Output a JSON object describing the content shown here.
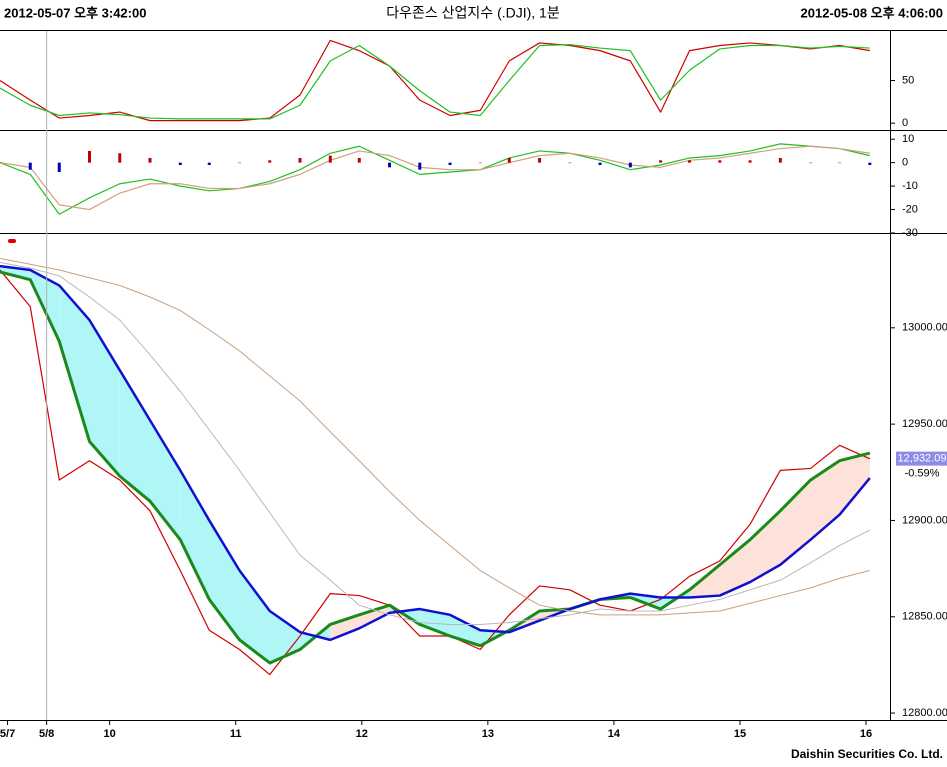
{
  "header": {
    "start": "2012-05-07 오후 3:42:00",
    "title": "다우존스 산업지수 (.DJI), 1분",
    "end": "2012-05-08 오후 4:06:00"
  },
  "footer": "Daishin Securities Co. Ltd.",
  "chart_data": [
    {
      "type": "line",
      "x": [
        9.13,
        9.37,
        9.6,
        9.84,
        10.08,
        10.32,
        10.56,
        10.79,
        11.03,
        11.27,
        11.51,
        11.75,
        11.98,
        12.22,
        12.46,
        12.7,
        12.94,
        13.17,
        13.41,
        13.65,
        13.89,
        14.13,
        14.37,
        14.6,
        14.84,
        15.08,
        15.32,
        15.56,
        15.79,
        16.03
      ],
      "xlim": [
        9.13,
        16.19
      ],
      "ylim": [
        -8,
        108
      ],
      "yticks": [
        0,
        50
      ],
      "series": [
        {
          "color": "#d00000",
          "values": [
            50,
            27,
            6,
            9,
            13,
            3,
            3,
            3,
            3,
            6,
            33,
            97,
            85,
            67,
            27,
            9,
            15,
            73,
            94,
            91,
            85,
            73,
            13,
            85,
            91,
            94,
            91,
            87,
            91,
            85
          ]
        },
        {
          "color": "#20c020",
          "values": [
            41,
            21,
            9,
            12,
            10,
            6,
            5,
            5,
            5,
            5,
            21,
            73,
            91,
            67,
            38,
            13,
            9,
            50,
            91,
            92,
            88,
            85,
            27,
            62,
            87,
            91,
            91,
            88,
            90,
            88
          ]
        }
      ]
    },
    {
      "type": "line",
      "x": [
        9.13,
        9.37,
        9.6,
        9.84,
        10.08,
        10.32,
        10.56,
        10.79,
        11.03,
        11.27,
        11.51,
        11.75,
        11.98,
        12.22,
        12.46,
        12.7,
        12.94,
        13.17,
        13.41,
        13.65,
        13.89,
        14.13,
        14.37,
        14.6,
        14.84,
        15.08,
        15.32,
        15.56,
        15.79,
        16.03
      ],
      "xlim": [
        9.13,
        16.19
      ],
      "ylim": [
        -30,
        13.5
      ],
      "yticks": [
        10,
        0,
        -10,
        -20,
        -30
      ],
      "series": [
        {
          "color": "#20c020",
          "values": [
            0,
            -5,
            -22,
            -15,
            -9,
            -7,
            -10,
            -12,
            -11,
            -8,
            -3,
            4,
            7,
            1,
            -5,
            -4,
            -3,
            2,
            5,
            4,
            1,
            -3,
            -1,
            2,
            3,
            5,
            8,
            7,
            6,
            3
          ]
        },
        {
          "color": "#d0a080",
          "values": [
            0,
            -2,
            -18,
            -20,
            -13,
            -9,
            -9,
            -11,
            -11,
            -9,
            -5,
            1,
            5,
            3,
            -2,
            -3,
            -3,
            0,
            3,
            4,
            2,
            -1,
            -2,
            1,
            2,
            4,
            6,
            7,
            6,
            4
          ]
        },
        {
          "style": "bar",
          "up_color": "#c00000",
          "down_color": "#0000c0",
          "values": [
            0,
            -3,
            -4,
            5,
            4,
            2,
            -1,
            -1,
            0,
            1,
            2,
            3,
            2,
            -2,
            -3,
            -1,
            0,
            2,
            2,
            0,
            -1,
            -2,
            1,
            1,
            1,
            1,
            2,
            0,
            0,
            -1
          ]
        }
      ]
    },
    {
      "type": "line",
      "x": [
        9.13,
        9.37,
        9.6,
        9.84,
        10.08,
        10.32,
        10.56,
        10.79,
        11.03,
        11.27,
        11.51,
        11.75,
        11.98,
        12.22,
        12.46,
        12.7,
        12.94,
        13.17,
        13.41,
        13.65,
        13.89,
        14.13,
        14.37,
        14.6,
        14.84,
        15.08,
        15.32,
        15.56,
        15.79,
        16.03
      ],
      "xlim": [
        9.13,
        16.19
      ],
      "ylim": [
        12796.4,
        13048.7
      ],
      "yticks": [
        {
          "value": 13000,
          "label": "13000.00"
        },
        {
          "value": 12950,
          "label": "12950.00"
        },
        {
          "value": 12900,
          "label": "12900.00"
        },
        {
          "value": 12850,
          "label": "12850.00"
        },
        {
          "value": 12800,
          "label": "12800.00"
        }
      ],
      "xticks": [
        {
          "value": 9.19,
          "label": "5/7"
        },
        {
          "value": 9.5,
          "label": "5/8"
        },
        10,
        11,
        12,
        13,
        14,
        15,
        16
      ],
      "fill": {
        "series": [
          1,
          2
        ],
        "up_color": "#fde2da",
        "down_color": "#b0f6f6"
      },
      "series": [
        {
          "color": "#d00000",
          "width": 1.2,
          "values": [
            13030,
            13011,
            12921,
            12931,
            12921,
            12905,
            12874,
            12843,
            12833,
            12820,
            12840,
            12862,
            12861,
            12856,
            12840,
            12840,
            12833,
            12851,
            12866,
            12864,
            12856,
            12853,
            12859,
            12871,
            12879,
            12898,
            12926,
            12927,
            12939,
            12932
          ]
        },
        {
          "color": "#1a8a1a",
          "width": 3,
          "values": [
            13029,
            13025,
            12993,
            12941,
            12923,
            12910,
            12890,
            12859,
            12838,
            12826,
            12833,
            12846,
            12851,
            12856,
            12846,
            12840,
            12835,
            12843,
            12853,
            12854,
            12859,
            12860,
            12854,
            12864,
            12877,
            12890,
            12905,
            12921,
            12931,
            12935
          ]
        },
        {
          "color": "#1010d0",
          "width": 2.5,
          "values": [
            13032,
            13030,
            13022,
            13004,
            12978,
            12952,
            12926,
            12900,
            12874,
            12853,
            12842,
            12838,
            12844,
            12852,
            12854,
            12851,
            12843,
            12842,
            12848,
            12854,
            12859,
            12862,
            12860,
            12860,
            12861,
            12868,
            12877,
            12890,
            12903,
            12922
          ]
        },
        {
          "color": "#b8b8b8",
          "width": 1,
          "values": [
            13034,
            13031,
            13027,
            13016,
            13004,
            12986,
            12967,
            12947,
            12926,
            12904,
            12882,
            12869,
            12856,
            12851,
            12847,
            12846,
            12846,
            12847,
            12849,
            12851,
            12854,
            12853,
            12853,
            12856,
            12859,
            12864,
            12869,
            12878,
            12887,
            12895
          ]
        },
        {
          "color": "#c8a080",
          "width": 1,
          "values": [
            13036,
            13033,
            13030,
            13026,
            13022,
            13016,
            13009,
            12999,
            12988,
            12975,
            12962,
            12946,
            12931,
            12915,
            12900,
            12887,
            12874,
            12865,
            12856,
            12853,
            12851,
            12851,
            12851,
            12852,
            12853,
            12857,
            12861,
            12865,
            12870,
            12874
          ]
        }
      ],
      "last": {
        "value": 12932.09,
        "label": "12,932.09",
        "color": "#8c8ce6"
      },
      "change": "-0.59%"
    }
  ]
}
